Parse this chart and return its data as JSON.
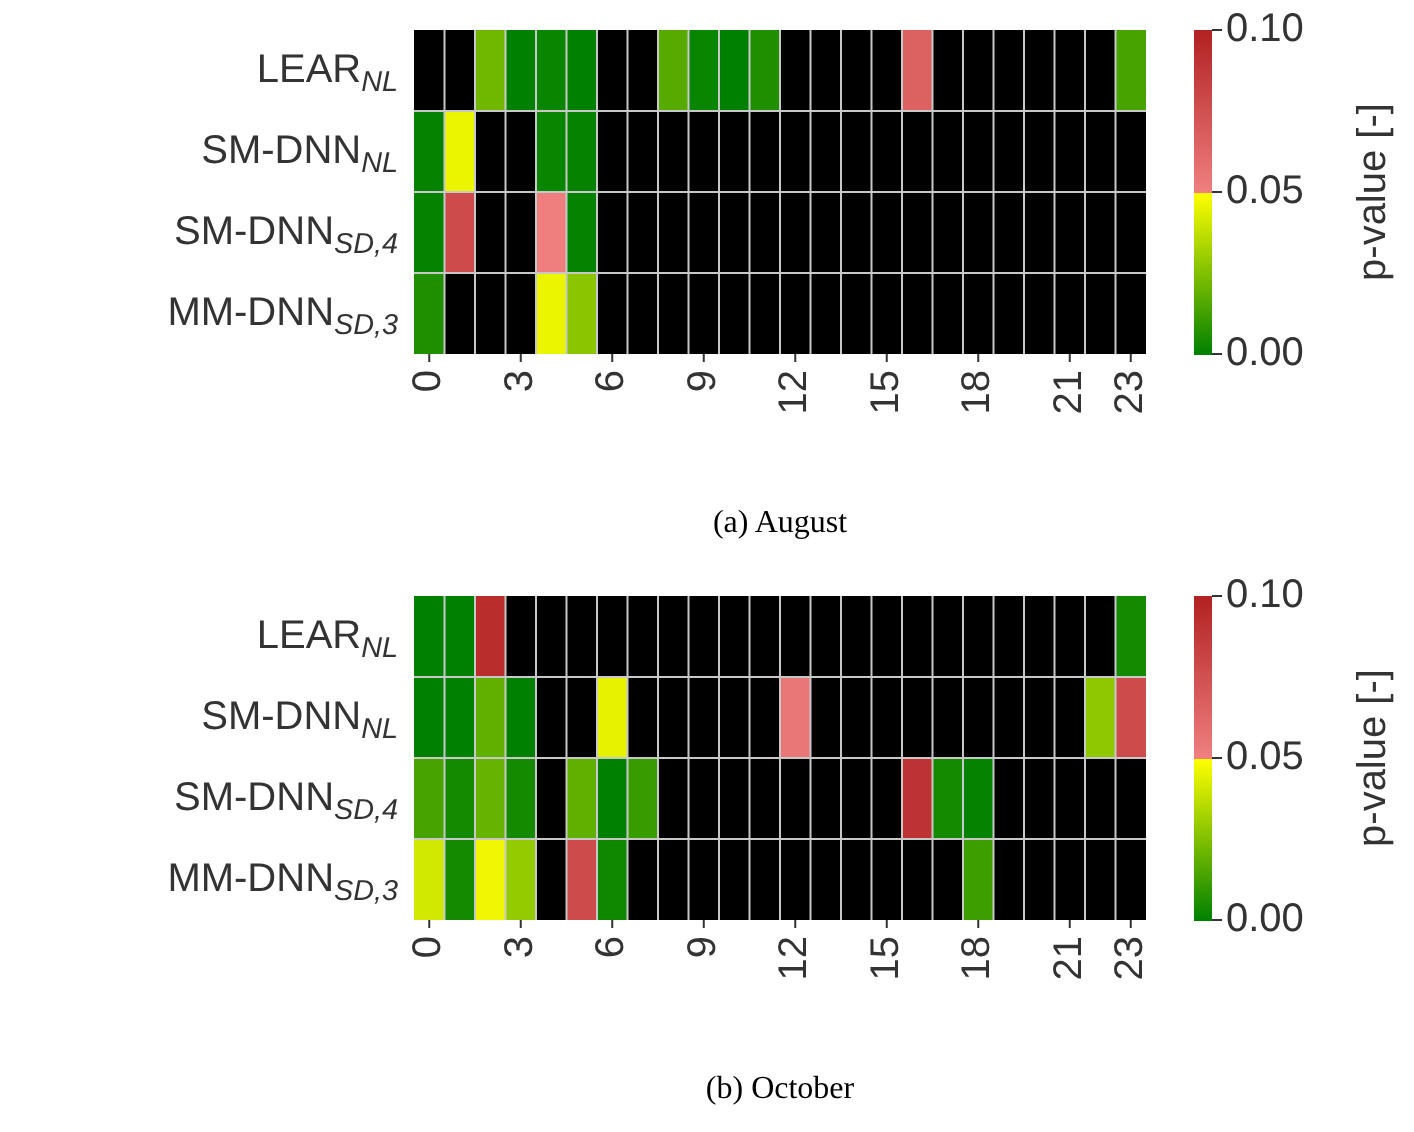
{
  "chart_data": [
    {
      "type": "heatmap",
      "title": "(a) August",
      "clabel": "p-value [-]",
      "clim": [
        0,
        0.1
      ],
      "cticks": [
        {
          "value": 0,
          "label": "0.00"
        },
        {
          "value": 0.05,
          "label": "0.05"
        },
        {
          "value": 0.1,
          "label": "0.10"
        }
      ],
      "categories": [
        "0",
        null,
        null,
        "3",
        null,
        null,
        "6",
        null,
        null,
        "9",
        null,
        null,
        "12",
        null,
        null,
        "15",
        null,
        null,
        "18",
        null,
        null,
        "21",
        null,
        "23"
      ],
      "y_categories": [
        "LEAR$_{NL}$",
        "SM-DNN$_{NL}$",
        "SM-DNN$_{SD,4}$",
        "MM-DNN$_{SD,3}$"
      ],
      "cells": [
        [
          null,
          null,
          0.022,
          0,
          0.002,
          0,
          null,
          null,
          0.017,
          0.002,
          0,
          0.006,
          null,
          null,
          null,
          null,
          0.066,
          null,
          null,
          null,
          null,
          null,
          null,
          0.014
        ],
        [
          0.001,
          0.046,
          null,
          null,
          0.002,
          0.001,
          null,
          null,
          null,
          null,
          null,
          null,
          null,
          null,
          null,
          null,
          null,
          null,
          null,
          null,
          null,
          null,
          null,
          null
        ],
        [
          0.001,
          0.078,
          null,
          null,
          0.051,
          0.001,
          null,
          null,
          null,
          null,
          null,
          null,
          null,
          null,
          null,
          null,
          null,
          null,
          null,
          null,
          null,
          null,
          null,
          null
        ],
        [
          0.006,
          null,
          null,
          null,
          0.046,
          0.027,
          null,
          null,
          null,
          null,
          null,
          null,
          null,
          null,
          null,
          null,
          null,
          null,
          null,
          null,
          null,
          null,
          null,
          null
        ]
      ]
    },
    {
      "type": "heatmap",
      "title": "(b) October",
      "clabel": "p-value [-]",
      "clim": [
        0,
        0.1
      ],
      "cticks": [
        {
          "value": 0,
          "label": "0.00"
        },
        {
          "value": 0.05,
          "label": "0.05"
        },
        {
          "value": 0.1,
          "label": "0.10"
        }
      ],
      "categories": [
        "0",
        null,
        null,
        "3",
        null,
        null,
        "6",
        null,
        null,
        "9",
        null,
        null,
        "12",
        null,
        null,
        "15",
        null,
        null,
        "18",
        null,
        null,
        "21",
        null,
        "23"
      ],
      "y_categories": [
        "LEAR$_{NL}$",
        "SM-DNN$_{NL}$",
        "SM-DNN$_{SD,4}$",
        "MM-DNN$_{SD,3}$"
      ],
      "cells": [
        [
          0,
          0,
          0.094,
          null,
          null,
          null,
          null,
          null,
          null,
          null,
          null,
          null,
          null,
          null,
          null,
          null,
          null,
          null,
          null,
          null,
          null,
          null,
          null,
          0.004
        ],
        [
          0,
          0,
          0.019,
          0,
          null,
          null,
          0.045,
          null,
          null,
          null,
          null,
          null,
          0.055,
          null,
          null,
          null,
          null,
          null,
          null,
          null,
          null,
          null,
          0.028,
          0.078
        ],
        [
          0.014,
          0.004,
          0.02,
          0.004,
          null,
          0.019,
          0,
          0.011,
          null,
          null,
          null,
          null,
          null,
          null,
          null,
          null,
          0.091,
          0.004,
          0.001,
          null,
          null,
          null,
          null,
          null
        ],
        [
          0.041,
          0.004,
          0.047,
          0.029,
          null,
          0.078,
          0.003,
          null,
          null,
          null,
          null,
          null,
          null,
          null,
          null,
          null,
          null,
          null,
          0.012,
          null,
          null,
          null,
          null,
          null
        ]
      ]
    }
  ]
}
